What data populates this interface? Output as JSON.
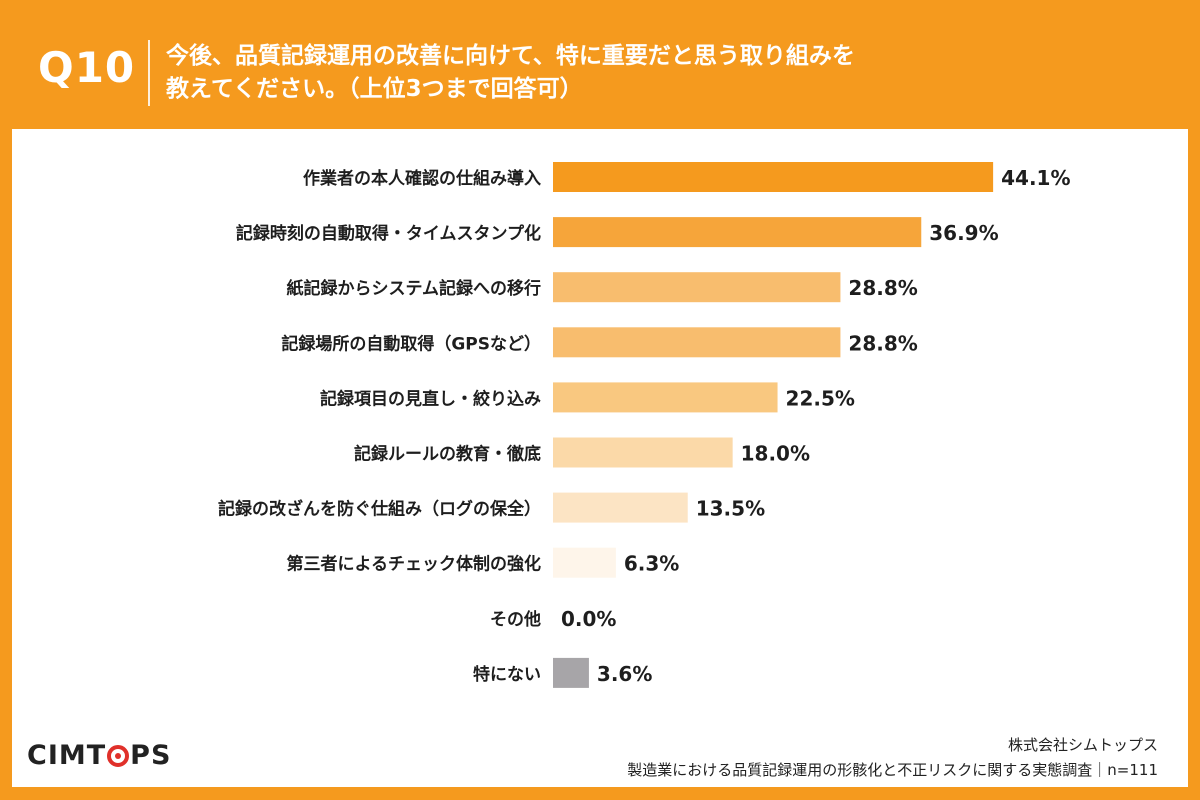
{
  "header": {
    "question_number": "Q10",
    "question_line1": "今後、品質記録運用の改善に向けて、特に重要だと思う取り組みを",
    "question_line2": "教えてください。（上位3つまで回答可）"
  },
  "brand": {
    "logo_text_before": "CIMT",
    "logo_text_after": "PS"
  },
  "footer": {
    "company": "株式会社シムトップス",
    "survey": "製造業における品質記録運用の形骸化と不正リスクに関する実態調査｜n=111"
  },
  "colors": {
    "background": "#F59A1E",
    "panel": "#FFFFFF",
    "logo_accent": "#E0302A"
  },
  "chart_data": {
    "type": "bar",
    "orientation": "horizontal",
    "categories": [
      "作業者の本人確認の仕組み導入",
      "記録時刻の自動取得・タイムスタンプ化",
      "紙記録からシステム記録への移行",
      "記録場所の自動取得（GPSなど）",
      "記録項目の見直し・絞り込み",
      "記録ルールの教育・徹底",
      "記録の改ざんを防ぐ仕組み（ログの保全）",
      "第三者によるチェック体制の強化",
      "その他",
      "特にない"
    ],
    "values": [
      44.1,
      36.9,
      28.8,
      28.8,
      22.5,
      18.0,
      13.5,
      6.3,
      0.0,
      3.6
    ],
    "value_labels": [
      "44.1%",
      "36.9%",
      "28.8%",
      "28.8%",
      "22.5%",
      "18.0%",
      "13.5%",
      "6.3%",
      "0.0%",
      "3.6%"
    ],
    "bar_colors": [
      "#F59A1E",
      "#F6A53A",
      "#F8BD6E",
      "#F8BD6E",
      "#F9C880",
      "#FBD9A8",
      "#FCE4C4",
      "#FEF5EA",
      "#FEF5EA",
      "#A7A5A8"
    ],
    "xlim": [
      0,
      100
    ],
    "grid": false,
    "legend": "none"
  }
}
